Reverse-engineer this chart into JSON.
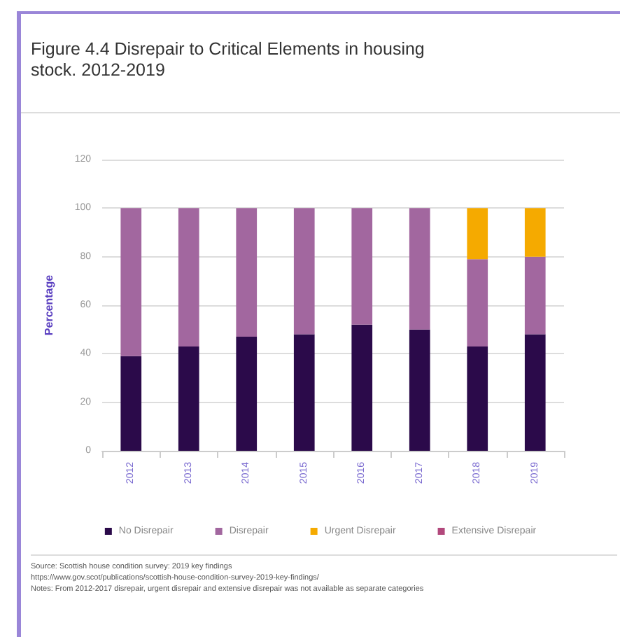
{
  "chart_data": {
    "type": "bar",
    "stacked": true,
    "title": "Figure 4.4 Disrepair to Critical Elements in housing stock. 2012-2019",
    "ylabel": "Percentage",
    "categories": [
      "2012",
      "2013",
      "2014",
      "2015",
      "2016",
      "2017",
      "2018",
      "2019"
    ],
    "series": [
      {
        "name": "No Disrepair",
        "color": "#2b0a4a",
        "values": [
          39,
          43,
          47,
          48,
          52,
          50,
          43,
          48
        ]
      },
      {
        "name": "Disrepair",
        "color": "#a2679f",
        "values": [
          61,
          57,
          53,
          52,
          48,
          50,
          36,
          32
        ]
      },
      {
        "name": "Urgent Disrepair",
        "color": "#f5aa00",
        "values": [
          null,
          null,
          null,
          null,
          null,
          null,
          21,
          20
        ]
      },
      {
        "name": "Extensive Disrepair",
        "color": "#b2487c",
        "values": [
          null,
          null,
          null,
          null,
          null,
          null,
          null,
          null
        ]
      }
    ],
    "ylim": [
      0,
      120
    ],
    "yticks": [
      0,
      20,
      40,
      60,
      80,
      100,
      120
    ],
    "grid": "y",
    "legend": "bottom",
    "annotations": [
      "Source: Scottish house condition survey: 2019 key findings",
      "https://www.gov.scot/publications/scottish-house-condition-survey-2019-key-findings/",
      "Notes: From 2012-2017 disrepair, urgent disrepair and extensive disrepair was not available as separate categories"
    ]
  }
}
